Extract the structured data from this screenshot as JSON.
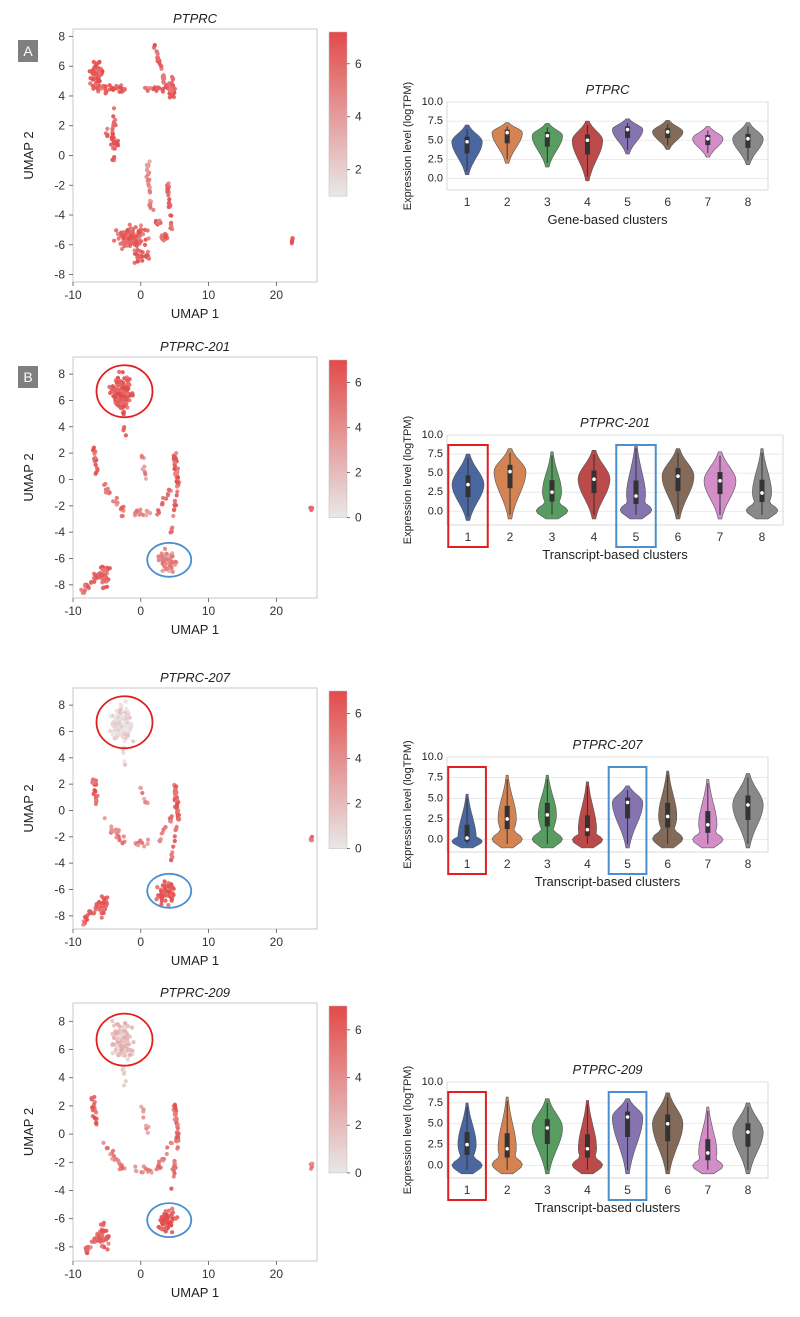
{
  "panels": [
    "A",
    "B"
  ],
  "colors": {
    "accent": "#e34a4a",
    "low": "#e8e8e8",
    "blue": "#3b5a98",
    "orange": "#d07a43",
    "green": "#4a9455",
    "red": "#b53b3b",
    "purple": "#7b68a8",
    "brown": "#7a5d4a",
    "pink": "#cf84c5",
    "grey": "#7f7f7f",
    "box_red": "#e02020",
    "box_blue": "#4a90d0"
  },
  "chart_data": [
    {
      "type": "scatter",
      "title": "PTPRC",
      "xlabel": "UMAP 1",
      "ylabel": "UMAP 2",
      "xlim": [
        -10,
        26
      ],
      "ylim": [
        -8.5,
        8.5
      ],
      "xticks": [
        "-10",
        "0",
        "10",
        "20"
      ],
      "yticks": [
        "8",
        "6",
        "4",
        "2",
        "0",
        "-2",
        "-4",
        "-6",
        "-8"
      ],
      "colorbar_ticks": [
        "6",
        "4",
        "2"
      ],
      "colorbar_range": [
        1,
        7.2
      ],
      "layout": "A",
      "highlight_circles": false
    },
    {
      "type": "violin",
      "title": "PTPRC",
      "xlabel": "Gene-based clusters",
      "ylabel": "Expression level (logTPM)",
      "ylim": [
        -1.5,
        10
      ],
      "yticks": [
        "10.0",
        "7.5",
        "5.0",
        "2.5",
        "0.0"
      ],
      "categories": [
        "1",
        "2",
        "3",
        "4",
        "5",
        "6",
        "7",
        "8"
      ],
      "series": [
        {
          "median": 4.8,
          "min": 0.5,
          "max": 7.0
        },
        {
          "median": 6.0,
          "min": 2.0,
          "max": 7.3
        },
        {
          "median": 5.6,
          "min": 1.5,
          "max": 7.2
        },
        {
          "median": 5.0,
          "min": -0.3,
          "max": 7.5
        },
        {
          "median": 6.4,
          "min": 3.2,
          "max": 7.8
        },
        {
          "median": 6.1,
          "min": 3.8,
          "max": 7.6
        },
        {
          "median": 5.2,
          "min": 2.8,
          "max": 6.8
        },
        {
          "median": 5.2,
          "min": 1.8,
          "max": 7.3
        }
      ],
      "highlight_boxes": []
    },
    {
      "type": "scatter",
      "title": "PTPRC-201",
      "xlabel": "UMAP 1",
      "ylabel": "UMAP 2",
      "xlim": [
        -10,
        26
      ],
      "ylim": [
        -9,
        9.3
      ],
      "xticks": [
        "-10",
        "0",
        "10",
        "20"
      ],
      "yticks": [
        "8",
        "6",
        "4",
        "2",
        "0",
        "-2",
        "-4",
        "-6",
        "-8"
      ],
      "colorbar_ticks": [
        "6",
        "4",
        "2",
        "0"
      ],
      "colorbar_range": [
        0,
        7
      ],
      "layout": "B",
      "top_intensity": 0.9,
      "bottom_intensity": 0.6,
      "highlight_circles": true
    },
    {
      "type": "violin",
      "title": "PTPRC-201",
      "xlabel": "Transcript-based clusters",
      "ylabel": "Expression level (logTPM)",
      "ylim": [
        -1.8,
        10
      ],
      "yticks": [
        "10.0",
        "7.5",
        "5.0",
        "2.5",
        "0.0"
      ],
      "categories": [
        "1",
        "2",
        "3",
        "4",
        "5",
        "6",
        "7",
        "8"
      ],
      "series": [
        {
          "median": 3.5,
          "min": -1.2,
          "max": 7.5
        },
        {
          "median": 5.2,
          "min": -1.0,
          "max": 8.2
        },
        {
          "median": 2.5,
          "min": -1.0,
          "max": 7.8
        },
        {
          "median": 4.2,
          "min": -1.0,
          "max": 8.0
        },
        {
          "median": 2.0,
          "min": -1.0,
          "max": 8.8
        },
        {
          "median": 4.6,
          "min": -1.0,
          "max": 8.2
        },
        {
          "median": 4.0,
          "min": -1.0,
          "max": 7.8
        },
        {
          "median": 2.4,
          "min": -1.0,
          "max": 8.2
        }
      ],
      "highlight_boxes": [
        0,
        4
      ]
    },
    {
      "type": "scatter",
      "title": "PTPRC-207",
      "xlabel": "UMAP 1",
      "ylabel": "UMAP 2",
      "xlim": [
        -10,
        26
      ],
      "ylim": [
        -9,
        9.3
      ],
      "xticks": [
        "-10",
        "0",
        "10",
        "20"
      ],
      "yticks": [
        "8",
        "6",
        "4",
        "2",
        "0",
        "-2",
        "-4",
        "-6",
        "-8"
      ],
      "colorbar_ticks": [
        "6",
        "4",
        "2",
        "0"
      ],
      "colorbar_range": [
        0,
        7
      ],
      "layout": "B",
      "top_intensity": 0.1,
      "bottom_intensity": 0.95,
      "highlight_circles": true
    },
    {
      "type": "violin",
      "title": "PTPRC-207",
      "xlabel": "Transcript-based clusters",
      "ylabel": "Expression level (logTPM)",
      "ylim": [
        -1.5,
        10
      ],
      "yticks": [
        "10.0",
        "7.5",
        "5.0",
        "2.5",
        "0.0"
      ],
      "categories": [
        "1",
        "2",
        "3",
        "4",
        "5",
        "6",
        "7",
        "8"
      ],
      "series": [
        {
          "median": 0.2,
          "min": -1.0,
          "max": 5.5
        },
        {
          "median": 2.5,
          "min": -1.0,
          "max": 7.8
        },
        {
          "median": 3.0,
          "min": -1.0,
          "max": 7.8
        },
        {
          "median": 1.2,
          "min": -1.0,
          "max": 7.0
        },
        {
          "median": 4.5,
          "min": -1.0,
          "max": 6.5
        },
        {
          "median": 2.8,
          "min": -1.0,
          "max": 8.3
        },
        {
          "median": 1.8,
          "min": -1.0,
          "max": 7.3
        },
        {
          "median": 4.2,
          "min": -1.0,
          "max": 8.0
        }
      ],
      "highlight_boxes": [
        0,
        4
      ]
    },
    {
      "type": "scatter",
      "title": "PTPRC-209",
      "xlabel": "UMAP 1",
      "ylabel": "UMAP 2",
      "xlim": [
        -10,
        26
      ],
      "ylim": [
        -9,
        9.3
      ],
      "xticks": [
        "-10",
        "0",
        "10",
        "20"
      ],
      "yticks": [
        "8",
        "6",
        "4",
        "2",
        "0",
        "-2",
        "-4",
        "-6",
        "-8"
      ],
      "colorbar_ticks": [
        "6",
        "4",
        "2",
        "0"
      ],
      "colorbar_range": [
        0,
        7
      ],
      "layout": "B",
      "top_intensity": 0.25,
      "bottom_intensity": 0.95,
      "highlight_circles": true
    },
    {
      "type": "violin",
      "title": "PTPRC-209",
      "xlabel": "Transcript-based clusters",
      "ylabel": "Expression level (logTPM)",
      "ylim": [
        -1.5,
        10
      ],
      "yticks": [
        "10.0",
        "7.5",
        "5.0",
        "2.5",
        "0.0"
      ],
      "categories": [
        "1",
        "2",
        "3",
        "4",
        "5",
        "6",
        "7",
        "8"
      ],
      "series": [
        {
          "median": 2.5,
          "min": -1.0,
          "max": 7.5
        },
        {
          "median": 2.0,
          "min": -1.0,
          "max": 8.2
        },
        {
          "median": 4.5,
          "min": -1.0,
          "max": 8.0
        },
        {
          "median": 2.0,
          "min": -1.0,
          "max": 7.8
        },
        {
          "median": 5.8,
          "min": -1.0,
          "max": 8.0
        },
        {
          "median": 5.0,
          "min": -1.0,
          "max": 8.7
        },
        {
          "median": 1.5,
          "min": -1.0,
          "max": 7.0
        },
        {
          "median": 4.0,
          "min": -1.0,
          "max": 7.5
        }
      ],
      "highlight_boxes": [
        0,
        4
      ]
    }
  ]
}
